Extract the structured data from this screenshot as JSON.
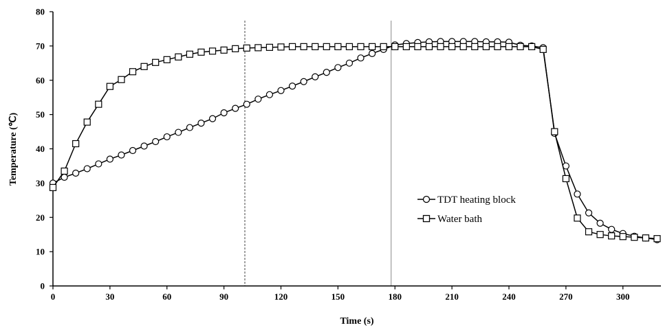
{
  "chart_data": {
    "type": "line",
    "xlabel": "Time (s)",
    "ylabel": "Temperature (℃)",
    "xlim": [
      0,
      320
    ],
    "ylim": [
      0,
      80
    ],
    "xticks": [
      0,
      30,
      60,
      90,
      120,
      150,
      180,
      210,
      240,
      270,
      300
    ],
    "yticks": [
      0,
      10,
      20,
      30,
      40,
      50,
      60,
      70,
      80
    ],
    "grid": false,
    "legend_position": "right",
    "vlines": [
      {
        "x": 101,
        "style": "dashed"
      },
      {
        "x": 178,
        "style": "solid"
      }
    ],
    "series": [
      {
        "name": "TDT heating block",
        "marker": "circle",
        "x": [
          0,
          6,
          12,
          18,
          24,
          30,
          36,
          42,
          48,
          54,
          60,
          66,
          72,
          78,
          84,
          90,
          96,
          102,
          108,
          114,
          120,
          126,
          132,
          138,
          144,
          150,
          156,
          162,
          168,
          174,
          180,
          186,
          192,
          198,
          204,
          210,
          216,
          222,
          228,
          234,
          240,
          246,
          252,
          258,
          264,
          270,
          276,
          282,
          288,
          294,
          300,
          306,
          312,
          318
        ],
        "y": [
          30.0,
          31.7,
          32.9,
          34.2,
          35.6,
          37.0,
          38.2,
          39.5,
          40.8,
          42.1,
          43.5,
          44.8,
          46.2,
          47.5,
          48.8,
          50.5,
          51.8,
          53.0,
          54.5,
          55.8,
          57.0,
          58.3,
          59.6,
          61.0,
          62.3,
          63.7,
          65.0,
          66.5,
          67.8,
          69.0,
          70.3,
          70.7,
          71.0,
          71.2,
          71.3,
          71.3,
          71.3,
          71.3,
          71.2,
          71.2,
          71.1,
          70.2,
          70.0,
          69.5,
          44.5,
          35.0,
          26.8,
          21.3,
          18.3,
          16.5,
          15.3,
          14.5,
          14.0,
          13.5
        ]
      },
      {
        "name": "Water bath",
        "marker": "square",
        "x": [
          0,
          6,
          12,
          18,
          24,
          30,
          36,
          42,
          48,
          54,
          60,
          66,
          72,
          78,
          84,
          90,
          96,
          102,
          108,
          114,
          120,
          126,
          132,
          138,
          144,
          150,
          156,
          162,
          168,
          174,
          180,
          186,
          192,
          198,
          204,
          210,
          216,
          222,
          228,
          234,
          240,
          246,
          252,
          258,
          264,
          270,
          276,
          282,
          288,
          294,
          300,
          306,
          312,
          318
        ],
        "y": [
          28.7,
          33.5,
          41.5,
          47.8,
          53.0,
          58.2,
          60.2,
          62.5,
          64.0,
          65.2,
          66.0,
          66.8,
          67.6,
          68.2,
          68.5,
          68.8,
          69.2,
          69.4,
          69.5,
          69.6,
          69.7,
          69.8,
          69.8,
          69.8,
          69.8,
          69.8,
          69.8,
          69.8,
          69.8,
          69.8,
          69.8,
          69.8,
          69.8,
          69.8,
          69.8,
          69.8,
          69.8,
          69.8,
          69.8,
          69.8,
          69.8,
          69.8,
          69.8,
          69.0,
          45.0,
          31.3,
          19.8,
          15.8,
          15.0,
          14.6,
          14.4,
          14.2,
          14.0,
          13.8
        ]
      }
    ]
  }
}
